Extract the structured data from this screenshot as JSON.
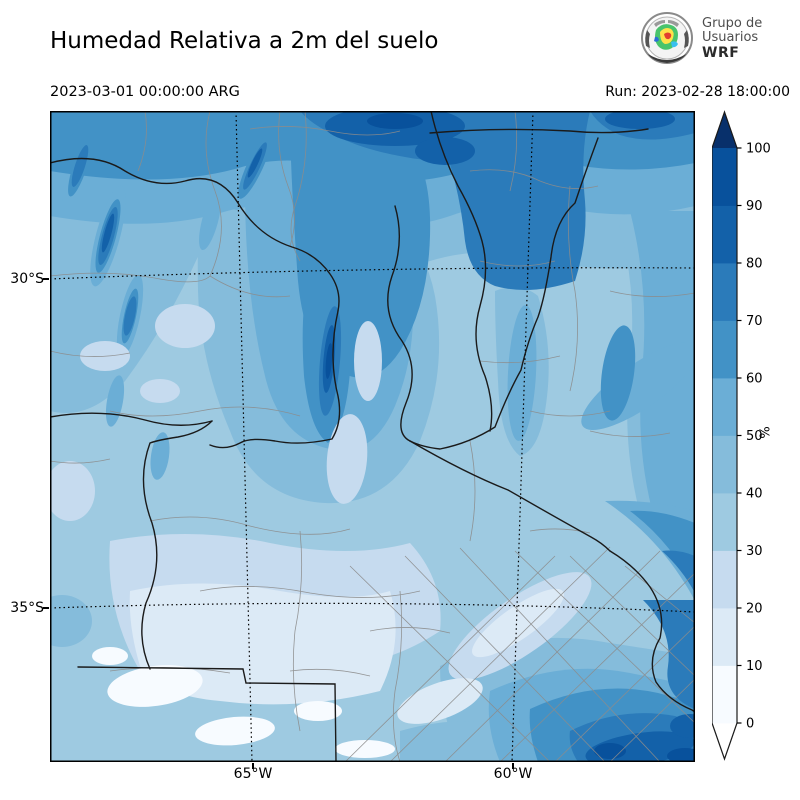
{
  "header": {
    "title": "Humedad Relativa a 2m del suelo",
    "valid_time": "2023-03-01 00:00:00 ARG",
    "run_label": "Run: 2023-02-28 18:00:00",
    "logo": {
      "line1": "Grupo de",
      "line2": "Usuarios",
      "line3": "WRF"
    }
  },
  "map": {
    "lat_tick_labels": [
      "30°S",
      "35°S"
    ],
    "lon_tick_labels": [
      "65°W",
      "60°W"
    ]
  },
  "colorbar": {
    "unit_label": "%",
    "tick_values": [
      0,
      10,
      20,
      30,
      40,
      50,
      60,
      70,
      80,
      90,
      100
    ],
    "segment_colors": [
      "#f7fbff",
      "#dceaf6",
      "#c6dbef",
      "#9ecae1",
      "#85bcdb",
      "#6baed6",
      "#4292c6",
      "#2b7bba",
      "#1361a9",
      "#08519c"
    ],
    "under_color": "#ffffff",
    "over_color": "#08306b",
    "outline_color": "#1a1a1a"
  }
}
